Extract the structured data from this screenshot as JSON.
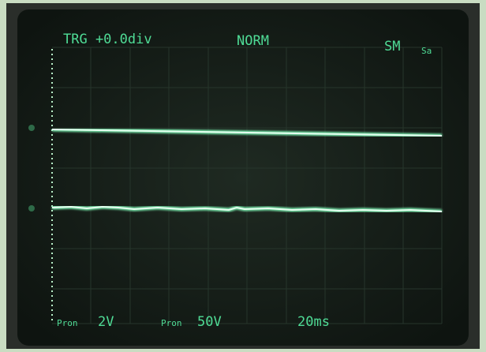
{
  "header": {
    "trigger": "TRG +0.0div",
    "mode": "NORM",
    "status": "SM",
    "status_sub": "Sa"
  },
  "footer": {
    "ch1_label": "Pron",
    "ch1_scale": "2V",
    "ch2_label": "Pron",
    "ch2_scale": "50V",
    "timebase": "20ms"
  }
}
